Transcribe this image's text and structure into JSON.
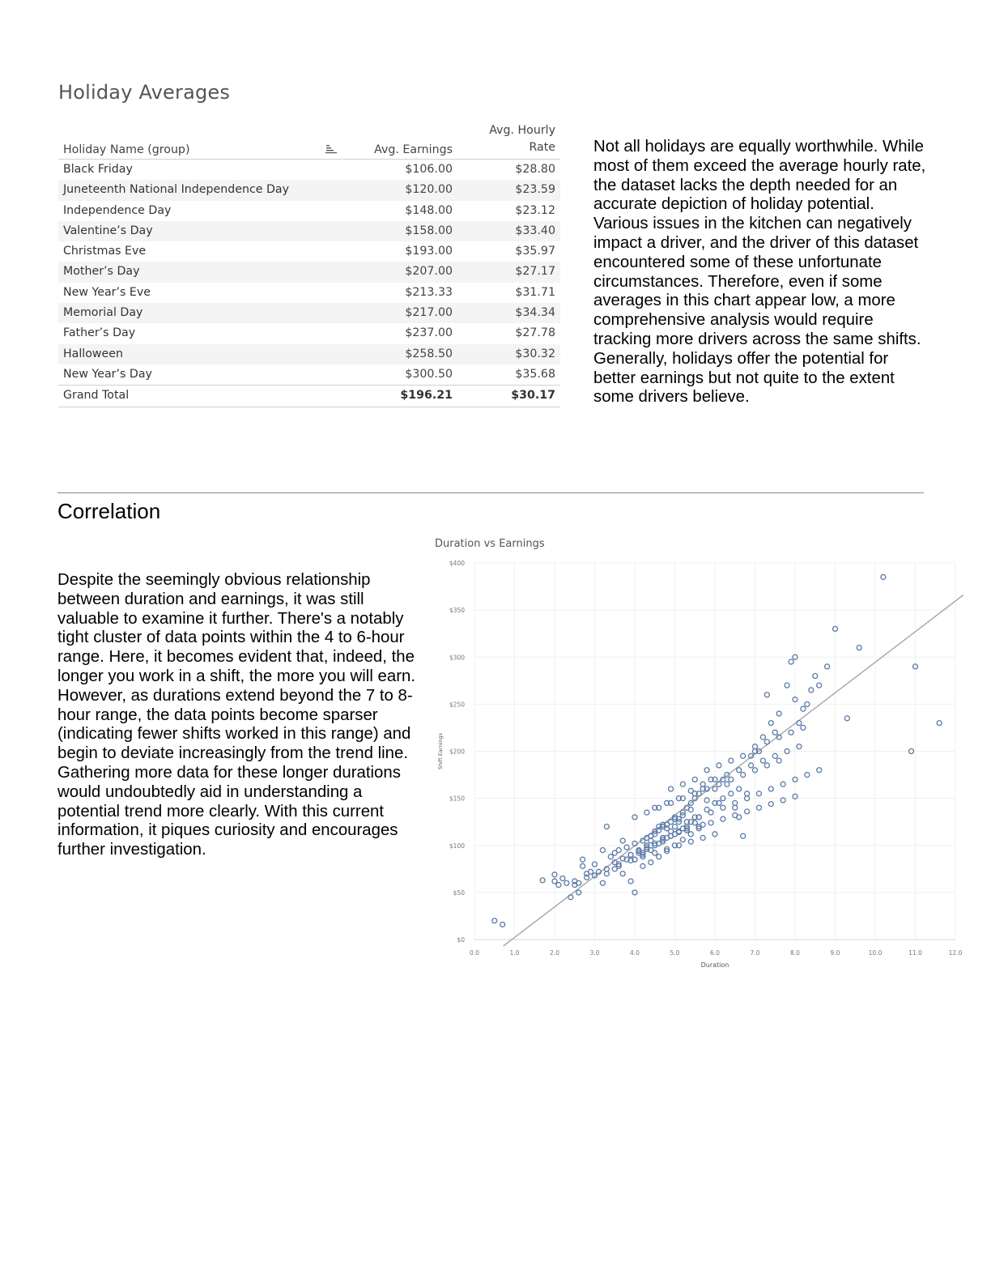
{
  "holiday_section": {
    "title": "Holiday Averages",
    "table": {
      "headers": {
        "name": "Holiday Name (group)",
        "earnings": "Avg. Earnings",
        "rate_line1": "Avg. Hourly",
        "rate_line2": "Rate"
      },
      "sort_icon": "sort-descending-icon",
      "rows": [
        {
          "name": "Black Friday",
          "earnings": "$106.00",
          "rate": "$28.80"
        },
        {
          "name": "Juneteenth National Independence Day",
          "earnings": "$120.00",
          "rate": "$23.59"
        },
        {
          "name": "Independence Day",
          "earnings": "$148.00",
          "rate": "$23.12"
        },
        {
          "name": "Valentine’s Day",
          "earnings": "$158.00",
          "rate": "$33.40"
        },
        {
          "name": "Christmas Eve",
          "earnings": "$193.00",
          "rate": "$35.97"
        },
        {
          "name": "Mother’s Day",
          "earnings": "$207.00",
          "rate": "$27.17"
        },
        {
          "name": "New Year’s Eve",
          "earnings": "$213.33",
          "rate": "$31.71"
        },
        {
          "name": "Memorial Day",
          "earnings": "$217.00",
          "rate": "$34.34"
        },
        {
          "name": "Father’s Day",
          "earnings": "$237.00",
          "rate": "$27.78"
        },
        {
          "name": "Halloween",
          "earnings": "$258.50",
          "rate": "$30.32"
        },
        {
          "name": "New Year’s Day",
          "earnings": "$300.50",
          "rate": "$35.68"
        }
      ],
      "total": {
        "name": "Grand Total",
        "earnings": "$196.21",
        "rate": "$30.17"
      }
    },
    "paragraph": "Not all holidays are equally worthwhile. While most of them exceed the average hourly rate, the dataset lacks the depth needed for an accurate depiction of holiday potential. Various issues in the kitchen can negatively impact a driver, and the driver of this dataset encountered some of these unfortunate circumstances. Therefore, even if some averages in this chart appear low, a more comprehensive analysis would require tracking more drivers across the same shifts. Generally, holidays offer the potential for better earnings but not quite to the extent some drivers believe."
  },
  "correlation_section": {
    "title": "Correlation",
    "paragraph": "Despite the seemingly obvious relationship between duration and earnings, it was still valuable to examine it further. There's a notably tight cluster of data points within the 4 to 6-hour range. Here, it becomes evident that, indeed, the longer you work in a shift, the more you will earn. However, as durations extend beyond the 7 to 8-hour range, the data points become sparser (indicating fewer shifts worked in this range) and begin to deviate increasingly from the trend line. Gathering more data for these longer durations would undoubtedly aid in understanding a potential trend more clearly. With this current information, it piques curiosity and encourages further investigation."
  },
  "chart_data": {
    "type": "scatter",
    "title": "Duration vs Earnings",
    "xlabel": "Duration",
    "ylabel": "Shift Earnings",
    "xlim": [
      0,
      12
    ],
    "ylim": [
      0,
      400
    ],
    "x_ticks": [
      "0.0",
      "1.0",
      "2.0",
      "3.0",
      "4.0",
      "5.0",
      "6.0",
      "7.0",
      "8.0",
      "9.0",
      "10.0",
      "11.0",
      "12.0"
    ],
    "y_ticks": [
      "$0",
      "$50",
      "$100",
      "$150",
      "$200",
      "$250",
      "$300",
      "$350",
      "$400"
    ],
    "grid": true,
    "marker_color": "#5b7aa8",
    "trendline": {
      "x": [
        0.5,
        12.2
      ],
      "y": [
        -7,
        366
      ],
      "color": "#aaaaaa"
    },
    "series": [
      {
        "x": [
          0.5,
          0.7,
          1.7,
          2.0,
          2.0,
          2.1,
          2.2,
          2.3,
          2.4,
          2.5,
          2.5,
          2.6,
          2.6,
          2.7,
          2.7,
          2.8,
          2.8,
          2.9,
          3.0,
          3.0,
          3.1,
          3.2,
          3.2,
          3.3,
          3.3,
          3.4,
          3.5,
          3.5,
          3.6,
          3.6,
          3.7,
          3.8,
          3.9,
          3.9,
          4.0,
          4.0,
          4.1,
          3.7,
          4.2,
          4.3,
          4.4,
          4.5,
          4.6,
          4.7,
          4.8,
          4.9,
          5.0,
          5.1,
          5.2,
          5.3,
          5.4,
          5.5,
          5.6,
          5.7,
          5.8,
          5.9,
          6.0,
          6.1,
          6.2,
          6.3,
          6.5,
          6.6,
          6.7,
          6.8,
          6.9,
          7.0,
          7.1,
          7.2,
          7.3,
          7.4,
          7.5,
          7.6,
          7.8,
          7.9,
          8.0,
          8.0,
          8.1,
          8.2,
          8.3,
          8.4,
          8.5,
          8.6,
          8.8,
          9.0,
          9.3,
          9.6,
          10.2,
          10.9,
          11.0,
          11.6,
          4.2,
          4.4,
          4.6,
          4.8,
          5.0,
          5.2,
          5.4,
          5.6,
          4.3,
          4.5,
          4.7,
          4.9,
          5.1,
          5.3,
          5.5,
          5.7,
          3.8,
          4.0,
          4.2,
          4.4,
          4.6,
          4.8,
          5.0,
          5.2,
          5.4,
          4.1,
          4.3,
          4.5,
          4.7,
          4.9,
          5.1,
          5.3,
          5.5,
          4.0,
          4.2,
          4.4,
          4.6,
          4.8,
          5.0,
          5.2,
          5.4,
          5.6,
          5.8,
          6.0,
          6.2,
          6.4,
          6.6,
          4.5,
          4.8,
          5.1,
          5.4,
          5.7,
          6.0,
          6.3,
          6.6,
          6.9,
          7.2,
          7.5,
          7.8,
          8.1,
          4.9,
          5.2,
          5.5,
          5.8,
          6.1,
          6.4,
          6.7,
          7.0,
          7.3,
          7.6,
          7.9,
          8.2,
          3.5,
          3.7,
          3.9,
          4.1,
          4.3,
          4.5,
          4.7,
          4.9,
          5.1,
          3.3,
          3.6,
          3.9,
          4.2,
          4.5,
          4.8,
          5.1,
          5.4,
          5.7,
          6.0,
          4.0,
          4.3,
          4.6,
          4.9,
          5.2,
          5.5,
          5.8,
          6.1,
          6.4,
          6.7,
          7.0,
          7.3,
          7.6,
          5.0,
          5.3,
          5.6,
          5.9,
          6.2,
          6.5,
          6.8,
          7.1,
          7.4,
          7.7,
          8.0,
          8.3,
          8.6,
          4.4,
          4.7,
          5.0,
          5.3,
          5.6,
          5.9,
          6.2,
          6.5,
          6.8,
          7.1,
          7.4,
          7.7,
          8.0
        ],
        "y": [
          20,
          16,
          63,
          69,
          62,
          58,
          65,
          60,
          45,
          62,
          58,
          60,
          50,
          85,
          78,
          70,
          66,
          72,
          80,
          68,
          72,
          60,
          95,
          70,
          120,
          88,
          92,
          75,
          80,
          95,
          70,
          85,
          90,
          62,
          50,
          85,
          95,
          105,
          92,
          100,
          110,
          115,
          120,
          122,
          118,
          125,
          130,
          128,
          135,
          140,
          145,
          150,
          155,
          160,
          148,
          170,
          160,
          145,
          170,
          165,
          140,
          130,
          110,
          155,
          195,
          205,
          200,
          215,
          260,
          230,
          220,
          240,
          270,
          295,
          300,
          255,
          230,
          245,
          250,
          265,
          280,
          270,
          290,
          330,
          235,
          310,
          385,
          200,
          290,
          230,
          78,
          82,
          88,
          94,
          100,
          106,
          112,
          118,
          108,
          112,
          120,
          115,
          125,
          118,
          130,
          122,
          98,
          102,
          105,
          110,
          116,
          122,
          128,
          132,
          138,
          92,
          96,
          100,
          104,
          110,
          115,
          120,
          124,
          85,
          90,
          95,
          102,
          108,
          112,
          118,
          125,
          130,
          138,
          145,
          150,
          155,
          160,
          140,
          145,
          150,
          158,
          165,
          170,
          175,
          180,
          185,
          190,
          195,
          200,
          205,
          160,
          165,
          170,
          180,
          185,
          190,
          195,
          200,
          210,
          215,
          220,
          225,
          82,
          86,
          90,
          94,
          98,
          102,
          106,
          110,
          114,
          75,
          78,
          84,
          88,
          92,
          96,
          100,
          104,
          108,
          112,
          130,
          135,
          140,
          145,
          150,
          155,
          160,
          165,
          170,
          175,
          180,
          185,
          190,
          120,
          125,
          130,
          135,
          140,
          145,
          150,
          155,
          160,
          165,
          170,
          175,
          180,
          105,
          108,
          112,
          116,
          120,
          124,
          128,
          132,
          136,
          140,
          144,
          148,
          152
        ]
      }
    ]
  }
}
